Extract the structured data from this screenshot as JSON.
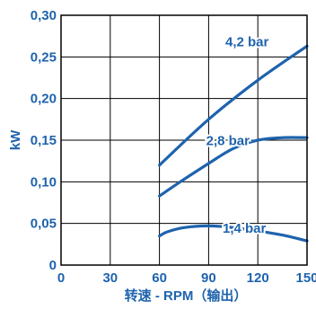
{
  "chart_data": {
    "type": "line",
    "title": "",
    "xlabel": "转速 - RPM（输出）",
    "ylabel": "kW",
    "xlim": [
      0,
      150
    ],
    "ylim": [
      0,
      0.3
    ],
    "x_ticks": [
      0,
      30,
      60,
      90,
      120,
      150
    ],
    "x_tick_labels": [
      "0",
      "30",
      "60",
      "90",
      "120",
      "150"
    ],
    "y_ticks": [
      0,
      0.05,
      0.1,
      0.15,
      0.2,
      0.25,
      0.3
    ],
    "y_tick_labels": [
      "0",
      "0,05",
      "0,10",
      "0,15",
      "0,20",
      "0,25",
      "0,30"
    ],
    "grid": true,
    "series": [
      {
        "name": "4,2 bar",
        "x": [
          60,
          90,
          120,
          150
        ],
        "y": [
          0.12,
          0.175,
          0.222,
          0.263
        ]
      },
      {
        "name": "2,8 bar",
        "x": [
          60,
          75,
          90,
          105,
          120,
          135,
          150
        ],
        "y": [
          0.083,
          0.103,
          0.122,
          0.14,
          0.15,
          0.153,
          0.153
        ]
      },
      {
        "name": "1,4 bar",
        "x": [
          60,
          65,
          75,
          90,
          105,
          120,
          135,
          150
        ],
        "y": [
          0.035,
          0.04,
          0.045,
          0.047,
          0.045,
          0.041,
          0.036,
          0.029
        ]
      }
    ],
    "colors": {
      "series": "#1e63ad",
      "text": "#1e63ad",
      "grid": "#000000"
    }
  }
}
